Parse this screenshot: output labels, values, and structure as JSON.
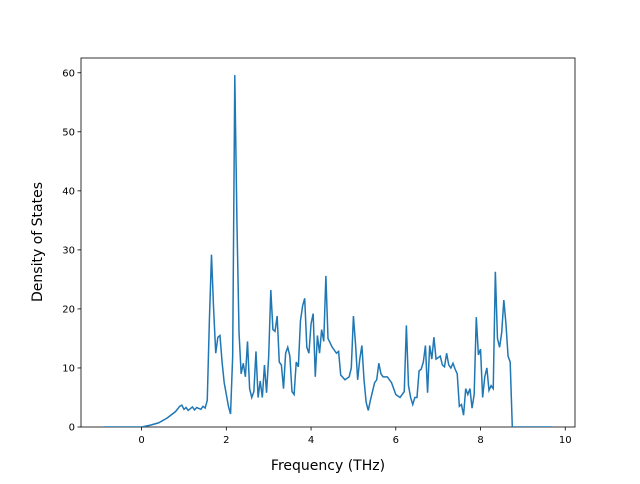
{
  "chart_data": {
    "type": "line",
    "xlabel": "Frequency (THz)",
    "ylabel": "Density of States",
    "series": [
      {
        "color": "#1f77b4",
        "x": [
          -0.9,
          0,
          0.2,
          0.4,
          0.6,
          0.8,
          0.9,
          0.95,
          1.0,
          1.05,
          1.1,
          1.2,
          1.25,
          1.3,
          1.4,
          1.45,
          1.5,
          1.55,
          1.6,
          1.65,
          1.7,
          1.75,
          1.8,
          1.85,
          1.9,
          1.95,
          2.0,
          2.05,
          2.1,
          2.15,
          2.2,
          2.25,
          2.3,
          2.35,
          2.4,
          2.45,
          2.5,
          2.55,
          2.6,
          2.65,
          2.7,
          2.75,
          2.8,
          2.85,
          2.9,
          2.95,
          3.0,
          3.05,
          3.1,
          3.15,
          3.2,
          3.25,
          3.3,
          3.35,
          3.4,
          3.45,
          3.5,
          3.55,
          3.6,
          3.65,
          3.7,
          3.75,
          3.8,
          3.85,
          3.9,
          3.95,
          4.0,
          4.05,
          4.1,
          4.15,
          4.2,
          4.25,
          4.3,
          4.35,
          4.4,
          4.5,
          4.6,
          4.65,
          4.7,
          4.8,
          4.9,
          4.95,
          5.0,
          5.05,
          5.1,
          5.15,
          5.2,
          5.25,
          5.3,
          5.35,
          5.4,
          5.5,
          5.55,
          5.6,
          5.65,
          5.7,
          5.8,
          5.9,
          6.0,
          6.1,
          6.2,
          6.25,
          6.3,
          6.35,
          6.4,
          6.45,
          6.5,
          6.55,
          6.6,
          6.65,
          6.7,
          6.75,
          6.8,
          6.85,
          6.9,
          6.95,
          7.05,
          7.1,
          7.15,
          7.2,
          7.25,
          7.3,
          7.35,
          7.4,
          7.45,
          7.5,
          7.55,
          7.6,
          7.65,
          7.7,
          7.75,
          7.8,
          7.85,
          7.9,
          7.95,
          8.0,
          8.05,
          8.1,
          8.15,
          8.2,
          8.25,
          8.3,
          8.35,
          8.4,
          8.45,
          8.5,
          8.55,
          8.6,
          8.65,
          8.7,
          8.75,
          9.7
        ],
        "values": [
          0,
          0,
          0.3,
          0.7,
          1.5,
          2.6,
          3.5,
          3.7,
          3.0,
          3.3,
          2.8,
          3.4,
          2.9,
          3.3,
          3.0,
          3.5,
          3.2,
          4.5,
          18,
          29.2,
          20,
          12.5,
          15.2,
          15.5,
          11,
          7.5,
          5.5,
          3.5,
          2.2,
          12,
          59.6,
          35,
          16,
          9,
          10.8,
          8.5,
          14.5,
          6.5,
          5,
          6,
          12.8,
          5,
          7.8,
          5,
          10.5,
          5.8,
          12,
          23.2,
          16.5,
          16.2,
          18.8,
          11,
          10.5,
          6.5,
          12.5,
          13.5,
          12,
          6,
          5.5,
          11,
          10.2,
          18,
          20.5,
          21.8,
          13.5,
          12.5,
          17.5,
          19.2,
          8.5,
          15.5,
          12.5,
          16.5,
          14.5,
          25.6,
          15,
          13.5,
          12.5,
          12.8,
          8.8,
          8,
          8.5,
          10,
          18.8,
          14,
          8,
          11.5,
          13.8,
          8,
          4.2,
          2.8,
          4.5,
          7.5,
          8,
          10.8,
          9,
          8.5,
          8.5,
          7.5,
          5.5,
          5,
          6,
          17.2,
          7,
          5,
          3.8,
          5,
          5,
          9.5,
          9.8,
          11,
          13.8,
          5.8,
          13.8,
          11.5,
          15.2,
          11.5,
          12,
          10.5,
          10.2,
          12.5,
          10.5,
          10,
          10.8,
          9.8,
          9,
          3.5,
          3.8,
          2,
          6.5,
          5.5,
          6.5,
          3.2,
          5.5,
          18.6,
          12.2,
          13.2,
          5,
          8.5,
          10,
          6.2,
          7,
          6.5,
          26.3,
          15,
          13.5,
          16,
          21.5,
          17.5,
          12,
          11,
          0,
          0
        ]
      }
    ],
    "xlim": [
      -1.43,
      10.23
    ],
    "xticks": [
      0,
      2,
      4,
      6,
      8,
      10
    ],
    "ylim": [
      0,
      62.5
    ],
    "yticks": [
      0,
      10,
      20,
      30,
      40,
      50,
      60
    ]
  }
}
